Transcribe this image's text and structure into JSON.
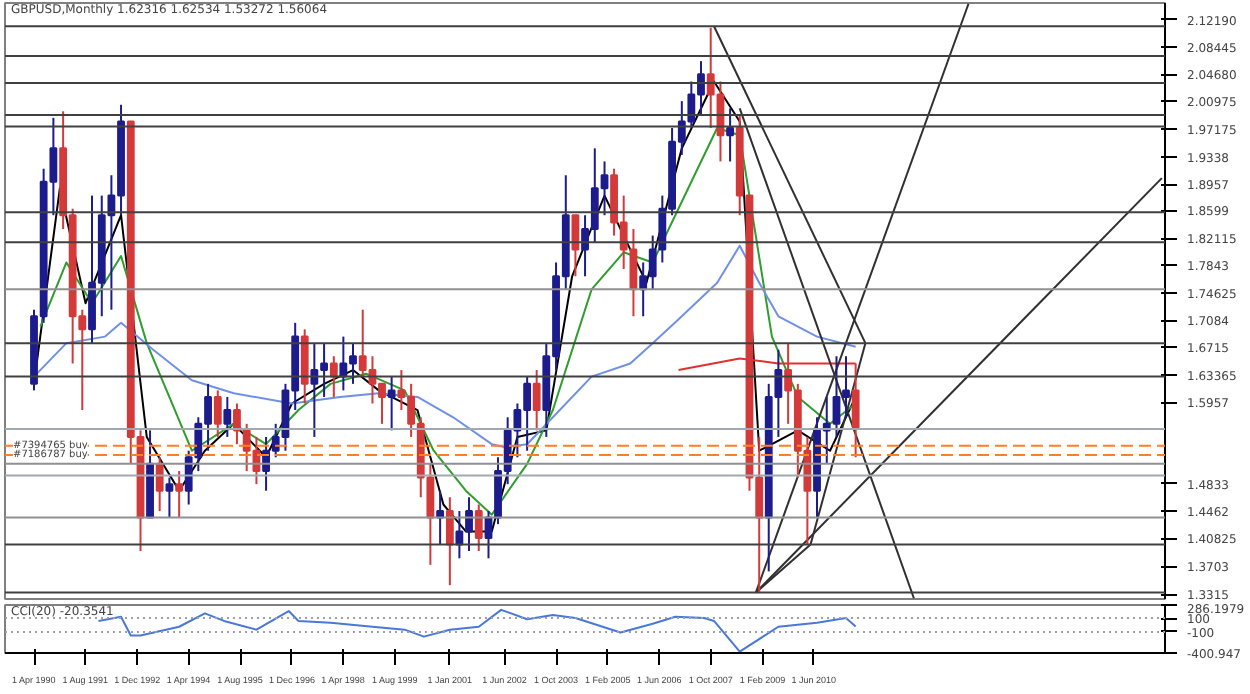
{
  "chart_data": [
    {
      "type": "candlestick",
      "title": "GBPUSD,Monthly 1.62316 1.62534 1.53272 1.56064",
      "x": [
        "1990-04",
        "1990-07",
        "1990-10",
        "1991-01",
        "1991-04",
        "1991-07",
        "1991-10",
        "1992-01",
        "1992-04",
        "1992-07",
        "1992-10",
        "1993-01",
        "1993-04",
        "1993-07",
        "1993-10",
        "1994-01",
        "1994-04",
        "1994-07",
        "1994-10",
        "1995-01",
        "1995-04",
        "1995-07",
        "1995-10",
        "1996-01",
        "1996-04",
        "1996-07",
        "1996-10",
        "1997-01",
        "1997-04",
        "1997-07",
        "1997-10",
        "1998-01",
        "1998-04",
        "1998-07",
        "1998-10",
        "1999-01",
        "1999-04",
        "1999-07",
        "1999-10",
        "2000-01",
        "2000-04",
        "2000-07",
        "2000-10",
        "2001-01",
        "2001-04",
        "2001-07",
        "2001-10",
        "2002-01",
        "2002-04",
        "2002-07",
        "2002-10",
        "2003-01",
        "2003-04",
        "2003-07",
        "2003-10",
        "2004-01",
        "2004-04",
        "2004-07",
        "2004-10",
        "2005-01",
        "2005-04",
        "2005-07",
        "2005-10",
        "2006-01",
        "2006-04",
        "2006-07",
        "2006-10",
        "2007-01",
        "2007-04",
        "2007-07",
        "2007-10",
        "2008-01",
        "2008-04",
        "2008-07",
        "2008-10",
        "2009-01",
        "2009-04",
        "2009-07",
        "2009-10",
        "2010-01",
        "2010-04",
        "2010-07",
        "2010-10",
        "2011-01",
        "2011-04",
        "2011-07"
      ],
      "ohlc": [
        [
          1.621,
          1.723,
          1.612,
          1.714
        ],
        [
          1.714,
          1.917,
          1.705,
          1.899
        ],
        [
          1.899,
          1.987,
          1.853,
          1.945
        ],
        [
          1.945,
          1.996,
          1.834,
          1.853
        ],
        [
          1.853,
          1.862,
          1.649,
          1.714
        ],
        [
          1.714,
          1.723,
          1.585,
          1.696
        ],
        [
          1.696,
          1.88,
          1.677,
          1.76
        ],
        [
          1.76,
          1.88,
          1.714,
          1.853
        ],
        [
          1.853,
          1.908,
          1.723,
          1.88
        ],
        [
          1.88,
          2.005,
          1.853,
          1.982
        ],
        [
          1.982,
          1.982,
          1.511,
          1.548
        ],
        [
          1.548,
          1.557,
          1.391,
          1.437
        ],
        [
          1.437,
          1.557,
          1.437,
          1.511
        ],
        [
          1.511,
          1.52,
          1.446,
          1.474
        ],
        [
          1.474,
          1.492,
          1.437,
          1.483
        ],
        [
          1.483,
          1.501,
          1.437,
          1.474
        ],
        [
          1.474,
          1.529,
          1.455,
          1.52
        ],
        [
          1.52,
          1.575,
          1.501,
          1.566
        ],
        [
          1.566,
          1.621,
          1.529,
          1.603
        ],
        [
          1.603,
          1.612,
          1.548,
          1.566
        ],
        [
          1.566,
          1.603,
          1.548,
          1.585
        ],
        [
          1.585,
          1.594,
          1.538,
          1.557
        ],
        [
          1.557,
          1.566,
          1.501,
          1.529
        ],
        [
          1.529,
          1.548,
          1.483,
          1.501
        ],
        [
          1.501,
          1.548,
          1.474,
          1.529
        ],
        [
          1.529,
          1.566,
          1.52,
          1.548
        ],
        [
          1.548,
          1.621,
          1.529,
          1.612
        ],
        [
          1.612,
          1.705,
          1.585,
          1.686
        ],
        [
          1.686,
          1.696,
          1.594,
          1.621
        ],
        [
          1.621,
          1.677,
          1.548,
          1.64
        ],
        [
          1.64,
          1.677,
          1.603,
          1.649
        ],
        [
          1.649,
          1.659,
          1.603,
          1.631
        ],
        [
          1.631,
          1.686,
          1.612,
          1.649
        ],
        [
          1.649,
          1.677,
          1.621,
          1.659
        ],
        [
          1.659,
          1.723,
          1.631,
          1.64
        ],
        [
          1.64,
          1.659,
          1.594,
          1.621
        ],
        [
          1.621,
          1.621,
          1.566,
          1.603
        ],
        [
          1.603,
          1.631,
          1.557,
          1.612
        ],
        [
          1.612,
          1.64,
          1.585,
          1.603
        ],
        [
          1.603,
          1.621,
          1.548,
          1.566
        ],
        [
          1.566,
          1.575,
          1.465,
          1.492
        ],
        [
          1.492,
          1.511,
          1.372,
          1.437
        ],
        [
          1.437,
          1.474,
          1.4,
          1.446
        ],
        [
          1.446,
          1.465,
          1.344,
          1.4
        ],
        [
          1.4,
          1.446,
          1.381,
          1.418
        ],
        [
          1.418,
          1.465,
          1.391,
          1.446
        ],
        [
          1.446,
          1.455,
          1.391,
          1.409
        ],
        [
          1.409,
          1.446,
          1.381,
          1.437
        ],
        [
          1.437,
          1.52,
          1.428,
          1.501
        ],
        [
          1.501,
          1.575,
          1.483,
          1.557
        ],
        [
          1.557,
          1.594,
          1.52,
          1.585
        ],
        [
          1.585,
          1.631,
          1.529,
          1.621
        ],
        [
          1.621,
          1.64,
          1.557,
          1.585
        ],
        [
          1.585,
          1.677,
          1.548,
          1.659
        ],
        [
          1.659,
          1.788,
          1.64,
          1.769
        ],
        [
          1.769,
          1.908,
          1.751,
          1.853
        ],
        [
          1.853,
          1.853,
          1.769,
          1.806
        ],
        [
          1.806,
          1.853,
          1.769,
          1.834
        ],
        [
          1.834,
          1.945,
          1.816,
          1.89
        ],
        [
          1.89,
          1.927,
          1.853,
          1.908
        ],
        [
          1.908,
          1.917,
          1.825,
          1.843
        ],
        [
          1.843,
          1.88,
          1.779,
          1.806
        ],
        [
          1.806,
          1.834,
          1.714,
          1.751
        ],
        [
          1.751,
          1.788,
          1.714,
          1.769
        ],
        [
          1.769,
          1.825,
          1.751,
          1.806
        ],
        [
          1.806,
          1.88,
          1.788,
          1.862
        ],
        [
          1.862,
          1.973,
          1.853,
          1.954
        ],
        [
          1.954,
          2.01,
          1.936,
          1.982
        ],
        [
          1.982,
          2.037,
          1.973,
          2.019
        ],
        [
          2.019,
          2.065,
          1.991,
          2.047
        ],
        [
          2.047,
          2.111,
          1.973,
          2.019
        ],
        [
          2.019,
          2.037,
          1.927,
          1.963
        ],
        [
          1.963,
          2.0,
          1.927,
          1.973
        ],
        [
          1.973,
          1.991,
          1.853,
          1.88
        ],
        [
          1.88,
          1.88,
          1.474,
          1.492
        ],
        [
          1.492,
          1.548,
          1.335,
          1.437
        ],
        [
          1.437,
          1.621,
          1.363,
          1.603
        ],
        [
          1.603,
          1.668,
          1.548,
          1.64
        ],
        [
          1.64,
          1.677,
          1.566,
          1.612
        ],
        [
          1.612,
          1.621,
          1.492,
          1.529
        ],
        [
          1.529,
          1.548,
          1.4,
          1.474
        ],
        [
          1.474,
          1.575,
          1.437,
          1.557
        ],
        [
          1.557,
          1.603,
          1.511,
          1.566
        ],
        [
          1.566,
          1.659,
          1.548,
          1.603
        ],
        [
          1.603,
          1.659,
          1.575,
          1.612
        ],
        [
          1.612,
          1.649,
          1.52,
          1.561
        ]
      ],
      "series": [
        {
          "type": "line",
          "color": "#000000",
          "x": [
            "1990-04",
            "1990-12",
            "1991-08",
            "1992-07",
            "1993-03",
            "1994-01",
            "1994-09",
            "1995-06",
            "1996-04",
            "1996-12",
            "1997-10",
            "1998-07",
            "1999-03",
            "2000-03",
            "2000-11",
            "2001-06",
            "2002-02",
            "2002-10",
            "2003-07",
            "2004-03",
            "2005-01",
            "2005-09",
            "2006-02",
            "2007-01",
            "2007-11",
            "2008-07",
            "2009-01",
            "2010-01",
            "2010-11",
            "2011-07"
          ],
          "values": [
            1.621,
            1.89,
            1.732,
            1.853,
            1.548,
            1.474,
            1.529,
            1.566,
            1.52,
            1.594,
            1.621,
            1.64,
            1.612,
            1.585,
            1.455,
            1.418,
            1.418,
            1.548,
            1.557,
            1.769,
            1.88,
            1.806,
            1.76,
            1.945,
            2.037,
            1.982,
            1.529,
            1.557,
            1.529,
            1.603
          ]
        },
        {
          "type": "line",
          "color": "#2e9e2e",
          "x": [
            "1990-06",
            "1991-02",
            "1991-10",
            "1992-07",
            "1993-03",
            "1994-05",
            "1995-06",
            "1996-04",
            "1997-02",
            "1997-12",
            "1998-11",
            "1999-11",
            "2000-08",
            "2001-06",
            "2002-02",
            "2003-01",
            "2003-09",
            "2004-09",
            "2005-07",
            "2006-04",
            "2007-04",
            "2007-12",
            "2008-07",
            "2009-05",
            "2010-01",
            "2010-11",
            "2011-07"
          ],
          "values": [
            1.7,
            1.788,
            1.732,
            1.797,
            1.677,
            1.529,
            1.566,
            1.538,
            1.585,
            1.621,
            1.635,
            1.612,
            1.529,
            1.474,
            1.441,
            1.511,
            1.585,
            1.751,
            1.802,
            1.788,
            1.899,
            1.973,
            1.963,
            1.686,
            1.603,
            1.566,
            1.594
          ]
        },
        {
          "type": "line",
          "color": "#7090e8",
          "x": [
            "1990-04",
            "1991-02",
            "1992-02",
            "1992-07",
            "1993-05",
            "1994-05",
            "1995-06",
            "1996-12",
            "1998-03",
            "1999-03",
            "2000-03",
            "2001-02",
            "2002-02",
            "2002-06",
            "2003-01",
            "2003-09",
            "2004-09",
            "2005-09",
            "2006-04",
            "2007-01",
            "2007-12",
            "2008-07",
            "2009-01",
            "2009-07",
            "2010-07",
            "2011-07"
          ],
          "values": [
            1.631,
            1.677,
            1.686,
            1.705,
            1.668,
            1.626,
            1.608,
            1.594,
            1.603,
            1.608,
            1.603,
            1.575,
            1.538,
            1.534,
            1.538,
            1.575,
            1.631,
            1.649,
            1.677,
            1.714,
            1.76,
            1.811,
            1.76,
            1.714,
            1.686,
            1.672
          ]
        },
        {
          "type": "line",
          "color": "#e03030",
          "x": [
            "2006-12",
            "2008-07",
            "2009-07",
            "2011-07"
          ],
          "values": [
            1.64,
            1.656,
            1.649,
            1.649
          ]
        },
        {
          "type": "line",
          "color": "#303030",
          "x": [
            "2007-11",
            "2011-10"
          ],
          "values": [
            2.113,
            1.677
          ]
        },
        {
          "type": "line",
          "color": "#303030",
          "x": [
            "2008-07",
            "2013-01"
          ],
          "values": [
            2.0,
            1.326
          ]
        },
        {
          "type": "line",
          "color": "#303030",
          "x": [
            "2008-12",
            "2014-06"
          ],
          "values": [
            1.334,
            2.144
          ]
        },
        {
          "type": "line",
          "color": "#303030",
          "x": [
            "2008-12",
            "2019-06"
          ],
          "values": [
            1.334,
            1.904
          ]
        },
        {
          "type": "line",
          "color": "#303030",
          "x": [
            "2008-12",
            "2010-05"
          ],
          "values": [
            1.334,
            1.4
          ]
        },
        {
          "type": "line",
          "color": "#303030",
          "x": [
            "2010-05",
            "2011-10"
          ],
          "values": [
            1.4,
            1.677
          ]
        }
      ],
      "ref_lines": [
        {
          "axis": "y",
          "value": 2.113,
          "color": "#404040"
        },
        {
          "axis": "y",
          "value": 2.072,
          "color": "#404040"
        },
        {
          "axis": "y",
          "value": 2.035,
          "color": "#404040"
        },
        {
          "axis": "y",
          "value": 1.991,
          "color": "#404040"
        },
        {
          "axis": "y",
          "value": 1.975,
          "color": "#404040"
        },
        {
          "axis": "y",
          "value": 1.857,
          "color": "#404040"
        },
        {
          "axis": "y",
          "value": 1.816,
          "color": "#404040"
        },
        {
          "axis": "y",
          "value": 1.751,
          "color": "#909090"
        },
        {
          "axis": "y",
          "value": 1.677,
          "color": "#404040"
        },
        {
          "axis": "y",
          "value": 1.631,
          "color": "#404040"
        },
        {
          "axis": "y",
          "value": 1.511,
          "color": "#909090"
        },
        {
          "axis": "y",
          "value": 1.437,
          "color": "#909090"
        },
        {
          "axis": "y",
          "value": 1.4,
          "color": "#404040"
        },
        {
          "axis": "y",
          "value": 1.334,
          "color": "#404040"
        },
        {
          "axis": "y",
          "value": 1.559,
          "color": "#a0a8b0"
        },
        {
          "axis": "y",
          "value": 1.495,
          "color": "#a0a8b0"
        },
        {
          "axis": "y",
          "value": 1.536,
          "color": "#ff7f27",
          "line_style": "dashed",
          "label": "#7394765 buy"
        },
        {
          "axis": "y",
          "value": 1.523,
          "color": "#ff7f27",
          "line_style": "dashed",
          "label": "#7186787 buy"
        }
      ],
      "ylim": [
        1.325,
        2.145
      ],
      "yticks": [
        {
          "value": 2.1219,
          "label": "2.12190"
        },
        2.08445,
        {
          "value": 2.0468,
          "label": "2.04680"
        },
        2.00975,
        1.97175,
        1.9338,
        1.8957,
        1.8599,
        1.82115,
        1.7843,
        1.74625,
        1.7084,
        1.6715,
        1.63365,
        1.5957,
        1.4833,
        1.4462,
        1.40825,
        1.3703,
        1.3315
      ],
      "tick_labels": "y",
      "xlim": [
        "1989-07",
        "2019-07"
      ]
    },
    {
      "type": "line",
      "title": "CCI(20) -20.3541",
      "series": [
        {
          "color": "#4a78d8",
          "x": [
            "1991-12",
            "1992-07",
            "1992-10",
            "1993-01",
            "1994-01",
            "1994-09",
            "1995-03",
            "1996-01",
            "1996-11",
            "1997-02",
            "1997-12",
            "1999-01",
            "1999-11",
            "2000-05",
            "2001-01",
            "2001-10",
            "2002-05",
            "2003-01",
            "2003-09",
            "2004-04",
            "2005-06",
            "2006-04",
            "2006-11",
            "2007-08",
            "2007-11",
            "2008-07",
            "2009-07",
            "2010-07",
            "2011-04",
            "2011-07"
          ],
          "values": [
            58,
            117,
            -150,
            -150,
            -25,
            167,
            58,
            -67,
            200,
            58,
            33,
            -25,
            -67,
            -167,
            -67,
            -25,
            217,
            83,
            142,
            100,
            -108,
            17,
            117,
            100,
            58,
            -380,
            -25,
            33,
            100,
            -20.3541
          ]
        }
      ],
      "ref_lines": [
        {
          "axis": "y",
          "value": 100,
          "color": "#a0a0a0",
          "line_style": "dotted"
        },
        {
          "axis": "y",
          "value": -100,
          "color": "#a0a0a0",
          "line_style": "dotted"
        }
      ],
      "xlim": [
        "1989-07",
        "2019-07"
      ],
      "ylim": [
        -400.947,
        286.1979
      ],
      "yticks": [
        286.1979,
        100,
        -100,
        -400.947
      ],
      "xticks": [
        {
          "value": "1990-04-01",
          "label": "1 Apr 1990"
        },
        {
          "value": "1991-08-01",
          "label": "1 Aug 1991"
        },
        {
          "value": "1992-12-01",
          "label": "1 Dec 1992"
        },
        {
          "value": "1994-04-01",
          "label": "1 Apr 1994"
        },
        {
          "value": "1995-08-01",
          "label": "1 Aug 1995"
        },
        {
          "value": "1996-12-01",
          "label": "1 Dec 1996"
        },
        {
          "value": "1998-04-01",
          "label": "1 Apr 1998"
        },
        {
          "value": "1999-08-01",
          "label": "1 Aug 1999"
        },
        {
          "value": "2001-01-01",
          "label": "1 Jan 2001"
        },
        {
          "value": "2002-06-01",
          "label": "1 Jun 2002"
        },
        {
          "value": "2003-10-01",
          "label": "1 Oct 2003"
        },
        {
          "value": "2005-02-01",
          "label": "1 Feb 2005"
        },
        {
          "value": "2006-06-01",
          "label": "1 Jun 2006"
        },
        {
          "value": "2007-10-01",
          "label": "1 Oct 2007"
        },
        {
          "value": "2009-02-01",
          "label": "1 Feb 2009"
        },
        {
          "value": "2010-06-01",
          "label": "1 Jun 2010"
        }
      ]
    }
  ]
}
